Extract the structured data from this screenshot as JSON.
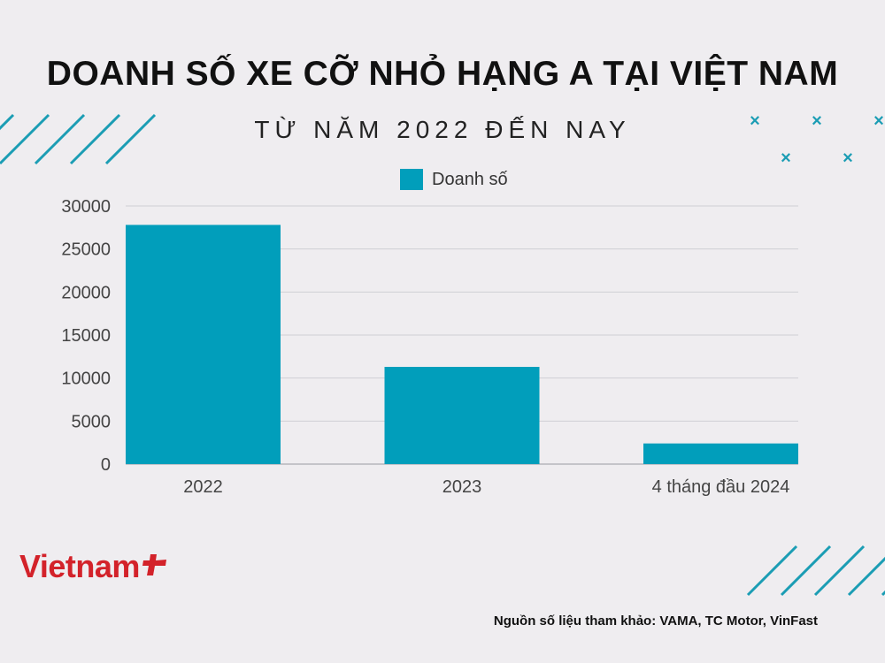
{
  "header": {
    "title": "DOANH SỐ XE CỠ NHỎ HẠNG A TẠI VIỆT NAM",
    "subtitle": "TỪ NĂM 2022 ĐẾN NAY"
  },
  "colors": {
    "bar": "#019ebb",
    "grid": "#cfcfd4",
    "accent_deco": "#1b9db4",
    "logo": "#d3222a"
  },
  "chart_data": {
    "type": "bar",
    "categories": [
      "2022",
      "2023",
      "4 tháng đầu 2024"
    ],
    "series": [
      {
        "name": "Doanh số",
        "values": [
          27800,
          11300,
          2400
        ]
      }
    ],
    "ylim": [
      0,
      30000
    ],
    "yticks": [
      "0",
      "5000",
      "10000",
      "15000",
      "20000",
      "25000",
      "30000"
    ],
    "grid": true,
    "legend_position": "top-center"
  },
  "footer": {
    "logo_text": "Vietnam",
    "source": "Nguồn số liệu tham khảo: VAMA, TC Motor, VinFast"
  }
}
